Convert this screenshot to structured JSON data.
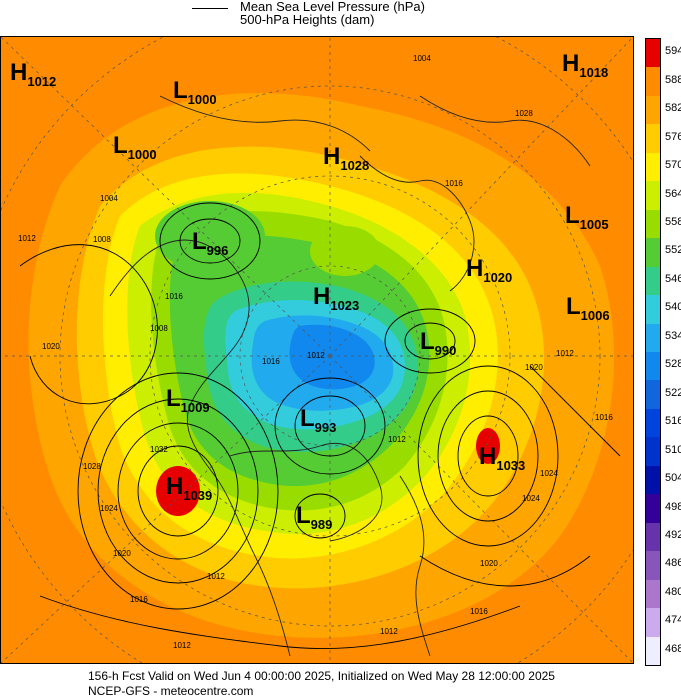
{
  "header": {
    "line1": "Mean Sea Level Pressure (hPa)",
    "line2": "500-hPa Heights (dam)"
  },
  "footer": {
    "line1": "156-h Fcst Valid on Wed Jun  4 00:00:00 2025, Initialized on Wed May 28 12:00:00 2025",
    "line2": "NCEP-GFS  - meteocentre.com"
  },
  "scale": {
    "values": [
      "594",
      "588",
      "582",
      "576",
      "570",
      "564",
      "558",
      "552",
      "546",
      "540",
      "534",
      "528",
      "522",
      "516",
      "510",
      "504",
      "498",
      "492",
      "486",
      "480",
      "474",
      "468"
    ],
    "colors": [
      "#e60000",
      "#ff8c00",
      "#ffa500",
      "#ffcc00",
      "#ffee00",
      "#ccee00",
      "#99dd00",
      "#55cc33",
      "#33cc88",
      "#33ccdd",
      "#22aaee",
      "#1188ee",
      "#1166dd",
      "#0044dd",
      "#0033cc",
      "#0011aa",
      "#330099",
      "#6633aa",
      "#8855bb",
      "#aa77cc",
      "#ccaaee",
      "#eeeeff"
    ]
  },
  "pressure_systems": [
    {
      "type": "H",
      "value": "1012"
    },
    {
      "type": "L",
      "value": "1000"
    },
    {
      "type": "L",
      "value": "1000"
    },
    {
      "type": "H",
      "value": "1028"
    },
    {
      "type": "H",
      "value": "1018"
    },
    {
      "type": "L",
      "value": "996"
    },
    {
      "type": "L",
      "value": "1005"
    },
    {
      "type": "H",
      "value": "1020"
    },
    {
      "type": "H",
      "value": "1023"
    },
    {
      "type": "L",
      "value": "1006"
    },
    {
      "type": "L",
      "value": "990"
    },
    {
      "type": "L",
      "value": "1009"
    },
    {
      "type": "L",
      "value": "993"
    },
    {
      "type": "H",
      "value": "1039"
    },
    {
      "type": "H",
      "value": "1033"
    },
    {
      "type": "L",
      "value": "989"
    }
  ],
  "isobar_labels": [
    "1004",
    "1012",
    "1008",
    "1004",
    "1016",
    "1020",
    "1008",
    "1016",
    "1012",
    "1012",
    "1020",
    "1024",
    "1032",
    "1028",
    "1024",
    "1020",
    "1016",
    "1012",
    "1012",
    "1020",
    "1024",
    "1016",
    "1016",
    "1012",
    "1012",
    "1028",
    "1016"
  ]
}
